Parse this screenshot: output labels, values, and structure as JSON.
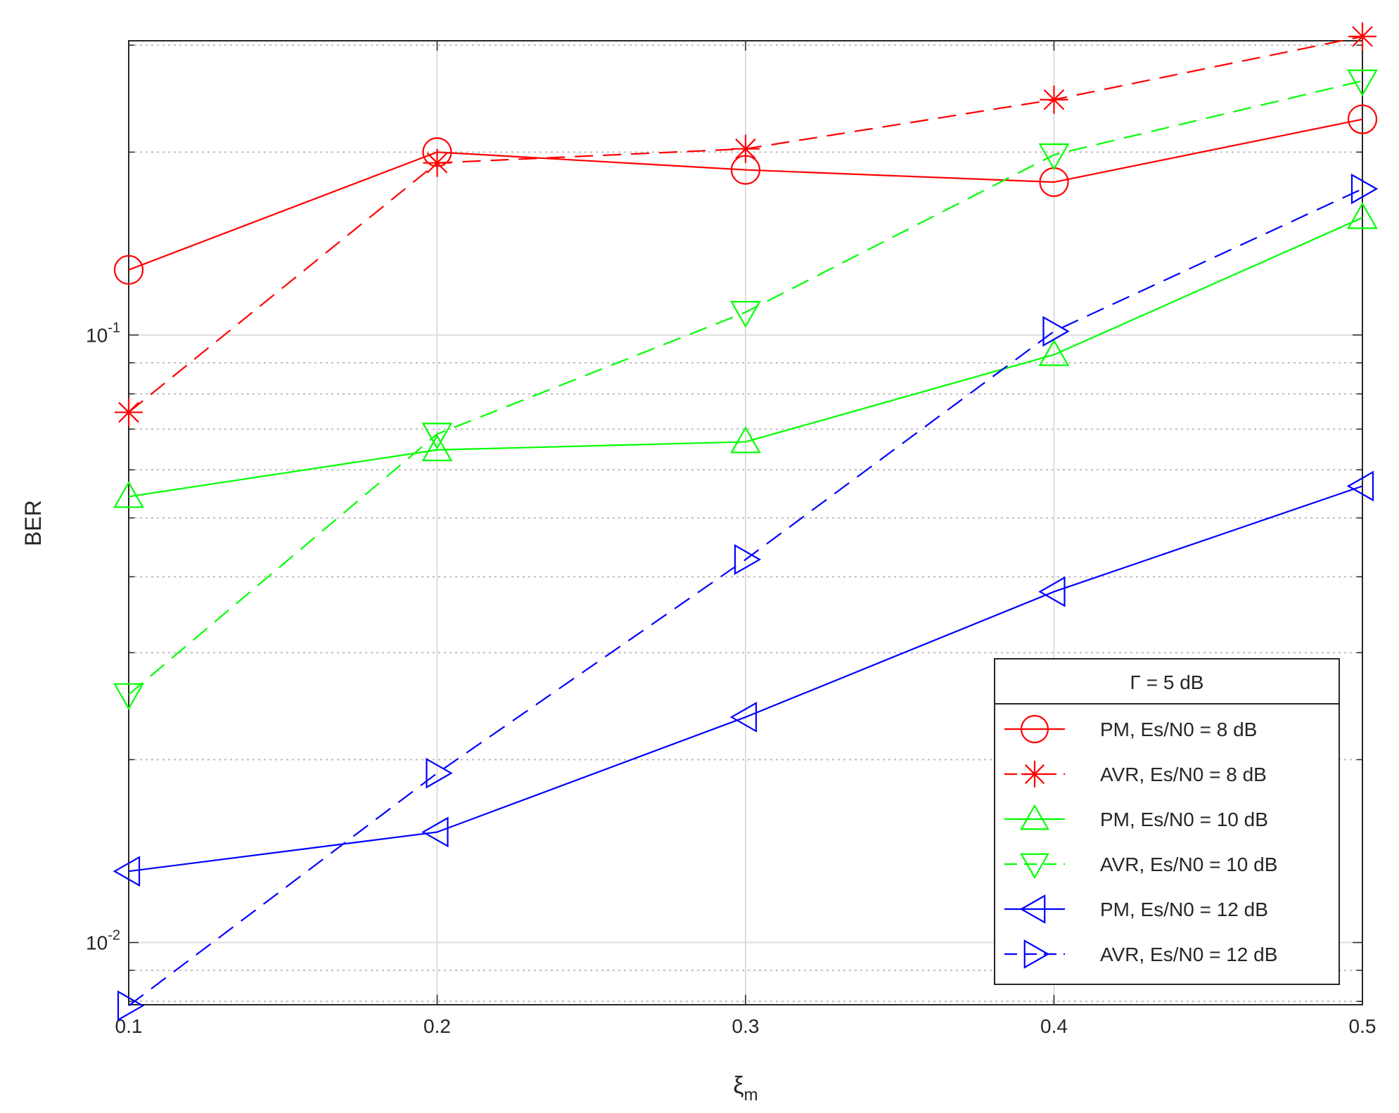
{
  "chart_data": {
    "type": "line",
    "x_label": "ξ",
    "x_label_sub": "m",
    "y_label": "BER",
    "legend_title": "Γ = 5 dB",
    "x": [
      0.1,
      0.2,
      0.3,
      0.4,
      0.5
    ],
    "xlim": [
      0.1,
      0.5
    ],
    "xticks": [
      0.1,
      0.2,
      0.3,
      0.4,
      0.5
    ],
    "ylim": [
      0.0079,
      0.305
    ],
    "log_y": true,
    "yticks": [
      {
        "value": 0.01,
        "label": "10",
        "exponent": "-2"
      },
      {
        "value": 0.1,
        "label": "10",
        "exponent": "-1"
      }
    ],
    "minor_yticks": [
      0.008,
      0.009,
      0.02,
      0.03,
      0.04,
      0.05,
      0.06,
      0.07,
      0.08,
      0.09,
      0.2,
      0.3
    ],
    "grid": true,
    "legend_position": "lower right",
    "series": [
      {
        "name": "PM, Es/N0 = 8 dB",
        "color": "#ff0000",
        "marker": "circle",
        "dash": "solid",
        "values": [
          0.128,
          0.2,
          0.187,
          0.1785,
          0.2265
        ]
      },
      {
        "name": "AVR, Es/N0 = 8 dB",
        "color": "#ff0000",
        "marker": "asterisk",
        "dash": "dashed",
        "values": [
          0.0746,
          0.192,
          0.2025,
          0.244,
          0.31
        ]
      },
      {
        "name": "PM, Es/N0 = 10 dB",
        "color": "#00ff00",
        "marker": "triangle-up",
        "dash": "solid",
        "values": [
          0.0542,
          0.0647,
          0.0667,
          0.0928,
          0.156
        ]
      },
      {
        "name": "AVR, Es/N0 = 10 dB",
        "color": "#00ff00",
        "marker": "triangle-down",
        "dash": "dashed",
        "values": [
          0.0256,
          0.0687,
          0.109,
          0.198,
          0.262
        ]
      },
      {
        "name": "PM, Es/N0 = 12 dB",
        "color": "#0000ff",
        "marker": "triangle-left",
        "dash": "solid",
        "values": [
          0.0131,
          0.0152,
          0.0235,
          0.0378,
          0.0564
        ]
      },
      {
        "name": "AVR, Es/N0 = 12 dB",
        "color": "#0000ff",
        "marker": "triangle-right",
        "dash": "dashed",
        "values": [
          0.00787,
          0.019,
          0.0427,
          0.1014,
          0.174
        ]
      }
    ]
  }
}
